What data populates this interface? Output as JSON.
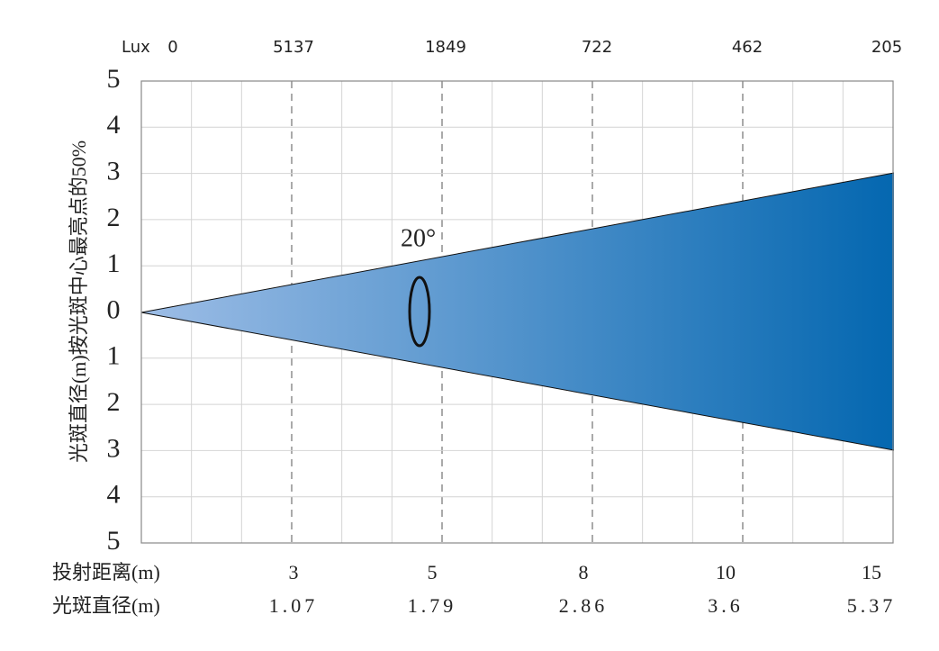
{
  "y_axis_title": "光斑直径(m)按光斑中心最亮点的50%",
  "y_labels": [
    "5",
    "4",
    "3",
    "2",
    "1",
    "0",
    "1",
    "2",
    "3",
    "4",
    "5"
  ],
  "lux_label": "Lux",
  "lux_values": [
    "0",
    "5137",
    "1849",
    "722",
    "462",
    "205"
  ],
  "angle": "20°",
  "distance_row": {
    "label": "投射距离(m)",
    "values": [
      "3",
      "5",
      "8",
      "10",
      "15"
    ]
  },
  "diameter_row": {
    "label": "光斑直径(m)",
    "values": [
      "1.07",
      "1.79",
      "2.86",
      "3.6",
      "5.37"
    ]
  }
}
